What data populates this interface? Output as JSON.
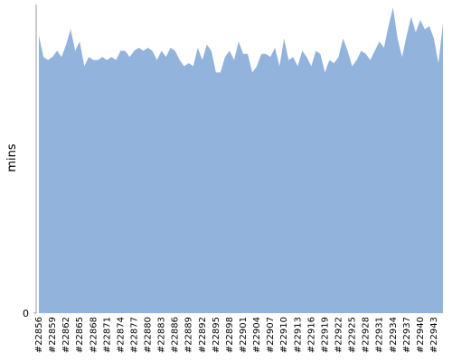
{
  "chart_data": {
    "type": "area",
    "y_label": "mins",
    "color": "#92b3dc",
    "categories": [
      "#22856",
      null,
      null,
      "#22859",
      null,
      null,
      "#22862",
      null,
      null,
      "#22865",
      null,
      null,
      "#22868",
      null,
      null,
      "#22871",
      null,
      null,
      "#22874",
      null,
      null,
      "#22877",
      null,
      null,
      "#22880",
      null,
      null,
      "#22883",
      null,
      null,
      "#22886",
      null,
      null,
      "#22889",
      null,
      null,
      "#22892",
      null,
      null,
      "#22895",
      null,
      null,
      "#22898",
      null,
      null,
      "#22901",
      null,
      null,
      "#22904",
      null,
      null,
      "#22907",
      null,
      null,
      "#22910",
      null,
      null,
      "#22913",
      null,
      null,
      "#22916",
      null,
      null,
      "#22919",
      null,
      null,
      "#22922",
      null,
      null,
      "#22925",
      null,
      null,
      "#22928",
      null,
      null,
      "#22931",
      null,
      null,
      "#22934",
      null,
      null,
      "#22937",
      null,
      null,
      "#22940",
      null,
      null,
      "#22943",
      null,
      null
    ],
    "values": [
      90,
      83,
      82,
      83,
      85,
      83,
      87,
      92,
      85,
      88,
      80,
      83,
      82,
      82,
      83,
      82,
      83,
      82,
      85,
      85,
      83,
      85,
      86,
      85,
      86,
      85,
      82,
      85,
      83,
      86,
      85,
      82,
      80,
      81,
      80,
      86,
      82,
      87,
      85,
      78,
      78,
      83,
      85,
      82,
      88,
      84,
      84,
      78,
      80,
      84,
      84,
      83,
      86,
      80,
      89,
      82,
      83,
      80,
      85,
      83,
      80,
      85,
      84,
      78,
      82,
      81,
      83,
      89,
      85,
      80,
      82,
      85,
      84,
      82,
      85,
      88,
      86,
      93,
      99,
      89,
      83,
      90,
      96,
      91,
      95,
      92,
      93,
      89,
      81,
      94
    ],
    "ylim": [
      0,
      100
    ],
    "yticks": [
      0
    ]
  }
}
